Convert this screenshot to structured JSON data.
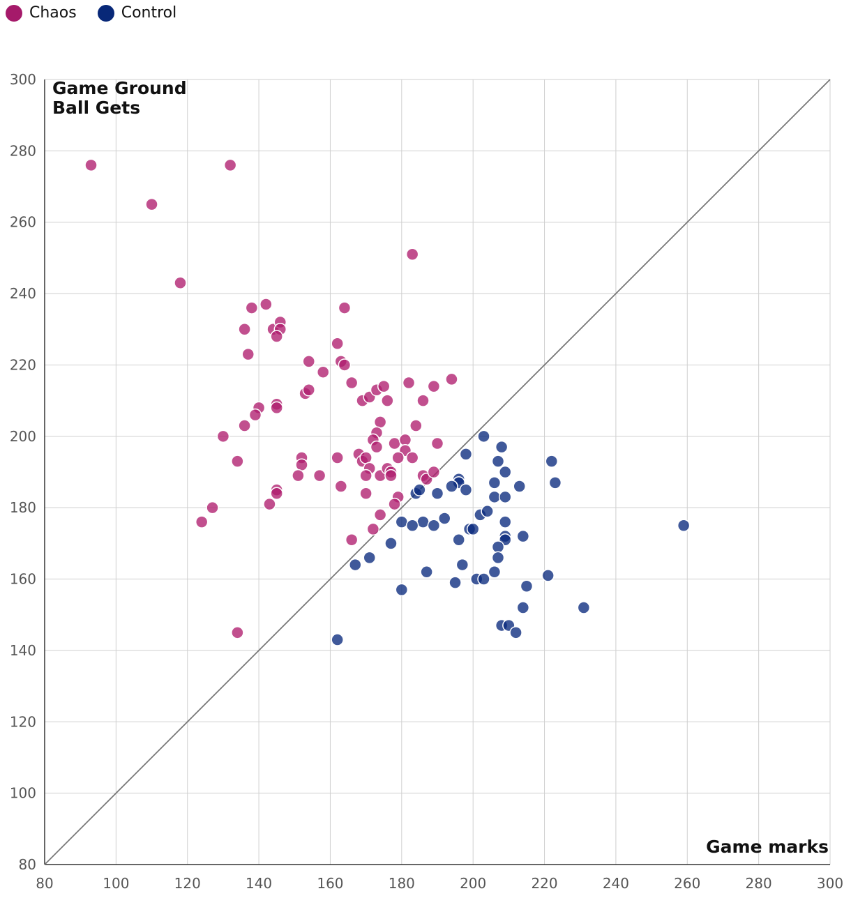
{
  "chart_data": {
    "type": "scatter",
    "title": "",
    "xlabel": "Game marks",
    "ylabel": [
      "Game Ground",
      "Ball Gets"
    ],
    "xlim": [
      80,
      300
    ],
    "ylim": [
      80,
      300
    ],
    "xticks": [
      80,
      100,
      120,
      140,
      160,
      180,
      200,
      220,
      240,
      260,
      280,
      300
    ],
    "yticks": [
      80,
      100,
      120,
      140,
      160,
      180,
      200,
      220,
      240,
      260,
      280,
      300
    ],
    "grid": true,
    "reference_line": "y = x",
    "legend_position": "top-left",
    "series": [
      {
        "name": "Chaos",
        "color": "#b01e6e",
        "points": [
          [
            93,
            276
          ],
          [
            110,
            265
          ],
          [
            118,
            243
          ],
          [
            132,
            276
          ],
          [
            183,
            251
          ],
          [
            138,
            236
          ],
          [
            142,
            237
          ],
          [
            136,
            230
          ],
          [
            144,
            230
          ],
          [
            146,
            232
          ],
          [
            146,
            230
          ],
          [
            145,
            228
          ],
          [
            137,
            223
          ],
          [
            154,
            221
          ],
          [
            158,
            218
          ],
          [
            164,
            236
          ],
          [
            162,
            226
          ],
          [
            163,
            221
          ],
          [
            164,
            220
          ],
          [
            166,
            215
          ],
          [
            153,
            212
          ],
          [
            154,
            213
          ],
          [
            140,
            208
          ],
          [
            139,
            206
          ],
          [
            145,
            209
          ],
          [
            145,
            208
          ],
          [
            136,
            203
          ],
          [
            130,
            200
          ],
          [
            134,
            193
          ],
          [
            124,
            176
          ],
          [
            127,
            180
          ],
          [
            143,
            181
          ],
          [
            145,
            185
          ],
          [
            145,
            184
          ],
          [
            152,
            194
          ],
          [
            152,
            192
          ],
          [
            151,
            189
          ],
          [
            157,
            189
          ],
          [
            162,
            194
          ],
          [
            163,
            186
          ],
          [
            134,
            145
          ],
          [
            169,
            210
          ],
          [
            171,
            211
          ],
          [
            173,
            213
          ],
          [
            175,
            214
          ],
          [
            176,
            210
          ],
          [
            182,
            215
          ],
          [
            186,
            210
          ],
          [
            189,
            214
          ],
          [
            194,
            216
          ],
          [
            174,
            204
          ],
          [
            173,
            201
          ],
          [
            172,
            199
          ],
          [
            173,
            197
          ],
          [
            178,
            198
          ],
          [
            181,
            199
          ],
          [
            181,
            196
          ],
          [
            184,
            203
          ],
          [
            190,
            198
          ],
          [
            168,
            195
          ],
          [
            169,
            193
          ],
          [
            170,
            194
          ],
          [
            171,
            191
          ],
          [
            170,
            189
          ],
          [
            174,
            189
          ],
          [
            176,
            191
          ],
          [
            177,
            190
          ],
          [
            177,
            189
          ],
          [
            179,
            194
          ],
          [
            183,
            194
          ],
          [
            186,
            189
          ],
          [
            187,
            188
          ],
          [
            189,
            190
          ],
          [
            170,
            184
          ],
          [
            179,
            183
          ],
          [
            178,
            181
          ],
          [
            174,
            178
          ],
          [
            172,
            174
          ],
          [
            166,
            171
          ]
        ]
      },
      {
        "name": "Control",
        "color": "#0a2a7d",
        "points": [
          [
            203,
            200
          ],
          [
            208,
            197
          ],
          [
            198,
            195
          ],
          [
            207,
            193
          ],
          [
            209,
            190
          ],
          [
            222,
            193
          ],
          [
            223,
            187
          ],
          [
            206,
            187
          ],
          [
            213,
            186
          ],
          [
            196,
            188
          ],
          [
            196,
            187
          ],
          [
            194,
            186
          ],
          [
            198,
            185
          ],
          [
            190,
            184
          ],
          [
            184,
            184
          ],
          [
            185,
            185
          ],
          [
            206,
            183
          ],
          [
            209,
            183
          ],
          [
            202,
            178
          ],
          [
            204,
            179
          ],
          [
            192,
            177
          ],
          [
            186,
            176
          ],
          [
            180,
            176
          ],
          [
            183,
            175
          ],
          [
            189,
            175
          ],
          [
            199,
            174
          ],
          [
            200,
            174
          ],
          [
            209,
            176
          ],
          [
            209,
            172
          ],
          [
            209,
            171
          ],
          [
            214,
            172
          ],
          [
            207,
            169
          ],
          [
            196,
            171
          ],
          [
            177,
            170
          ],
          [
            171,
            166
          ],
          [
            167,
            164
          ],
          [
            197,
            164
          ],
          [
            207,
            166
          ],
          [
            187,
            162
          ],
          [
            206,
            162
          ],
          [
            201,
            160
          ],
          [
            203,
            160
          ],
          [
            195,
            159
          ],
          [
            180,
            157
          ],
          [
            215,
            158
          ],
          [
            221,
            161
          ],
          [
            214,
            152
          ],
          [
            231,
            152
          ],
          [
            208,
            147
          ],
          [
            210,
            147
          ],
          [
            212,
            145
          ],
          [
            162,
            143
          ],
          [
            259,
            175
          ]
        ]
      }
    ]
  }
}
